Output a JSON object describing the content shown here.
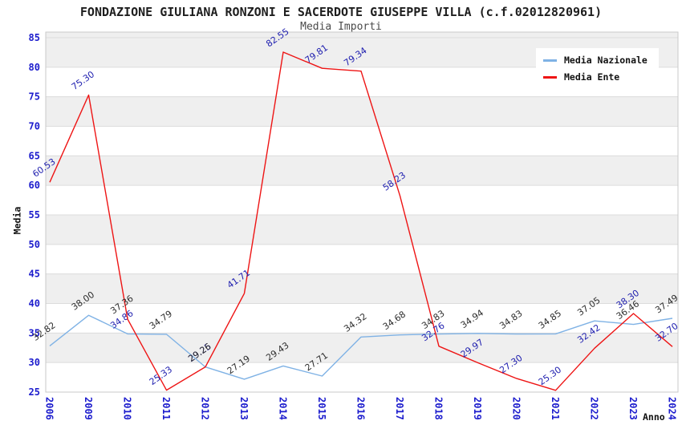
{
  "chart_data": {
    "type": "line",
    "title": "FONDAZIONE GIULIANA RONZONI E SACERDOTE GIUSEPPE VILLA (c.f.02012820961)",
    "subtitle": "Media Importi",
    "xlabel": "Anno",
    "ylabel": "Media",
    "ylim": [
      25,
      85
    ],
    "ytick_step": 5,
    "grid": true,
    "legend_position": "top-right",
    "x": [
      "2006",
      "2009",
      "2010",
      "2011",
      "2012",
      "2013",
      "2014",
      "2015",
      "2016",
      "2017",
      "2018",
      "2019",
      "2020",
      "2021",
      "2022",
      "2023",
      "2024"
    ],
    "series": [
      {
        "name": "Media Nazionale",
        "color": "#7fb2e5",
        "values": [
          32.82,
          38.0,
          34.86,
          34.79,
          29.25,
          27.19,
          29.43,
          27.71,
          34.32,
          34.68,
          34.83,
          34.94,
          34.83,
          34.85,
          37.05,
          36.46,
          37.49
        ],
        "label_colors": [
          "dark",
          "dark",
          "blue",
          "dark",
          "blue",
          "dark",
          "dark",
          "dark",
          "dark",
          "dark",
          "dark",
          "dark",
          "dark",
          "dark",
          "dark",
          "dark",
          "dark"
        ]
      },
      {
        "name": "Media Ente",
        "color": "#ee1414",
        "values": [
          60.53,
          75.3,
          37.36,
          25.33,
          29.26,
          41.71,
          82.55,
          79.81,
          79.34,
          58.23,
          32.76,
          29.97,
          27.3,
          25.3,
          32.42,
          38.3,
          32.7
        ],
        "label_colors": [
          "blue",
          "blue",
          "dark",
          "blue",
          "dark",
          "blue",
          "blue",
          "blue",
          "blue",
          "blue",
          "blue",
          "blue",
          "blue",
          "blue",
          "blue",
          "blue",
          "blue"
        ]
      }
    ],
    "colors": {
      "value_label_dark": "#2e2e2e",
      "value_label_blue": "#2121b0",
      "axis_tick": "#1c1ccd",
      "band_gray": "#efefef",
      "band_white": "#ffffff",
      "grid_line": "#dcdcdc",
      "plot_border": "#c8c8c8"
    }
  }
}
